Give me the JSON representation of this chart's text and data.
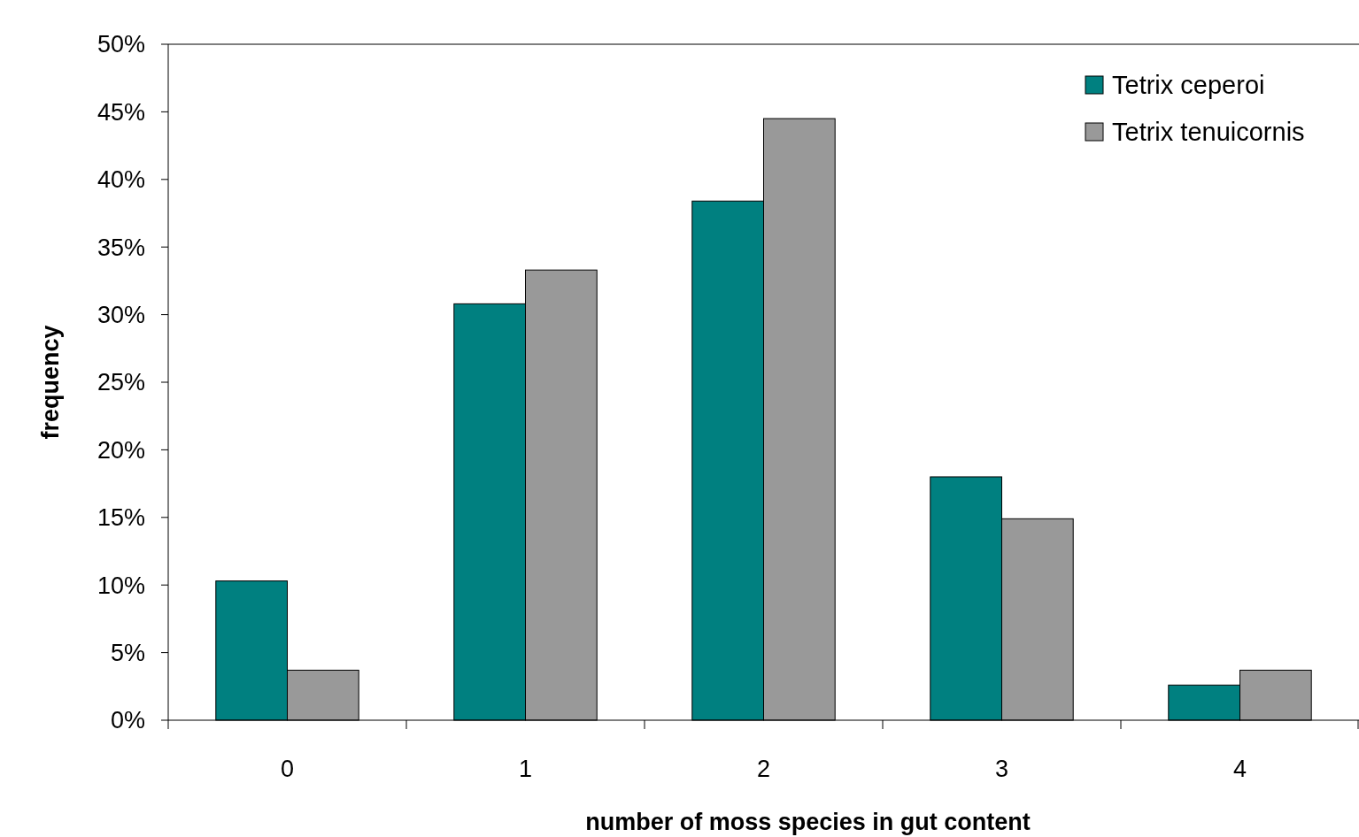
{
  "chart_data": {
    "type": "bar",
    "xlabel": "number of moss species in gut content",
    "ylabel": "frequency",
    "categories": [
      "0",
      "1",
      "2",
      "3",
      "4"
    ],
    "series": [
      {
        "name": "Tetrix ceperoi",
        "color": "#008080",
        "values": [
          10.3,
          30.8,
          38.4,
          18.0,
          2.6
        ]
      },
      {
        "name": "Tetrix tenuicornis",
        "color": "#999999",
        "values": [
          3.7,
          33.3,
          44.5,
          14.9,
          3.7
        ]
      }
    ],
    "ylim": [
      0,
      50
    ],
    "yticks": [
      {
        "value": 0,
        "label": "0%"
      },
      {
        "value": 5,
        "label": "5%"
      },
      {
        "value": 10,
        "label": "10%"
      },
      {
        "value": 15,
        "label": "15%"
      },
      {
        "value": 20,
        "label": "20%"
      },
      {
        "value": 25,
        "label": "25%"
      },
      {
        "value": 30,
        "label": "30%"
      },
      {
        "value": 35,
        "label": "35%"
      },
      {
        "value": 40,
        "label": "40%"
      },
      {
        "value": 45,
        "label": "45%"
      },
      {
        "value": 50,
        "label": "50%"
      }
    ],
    "legend": "top right",
    "grid": false
  }
}
